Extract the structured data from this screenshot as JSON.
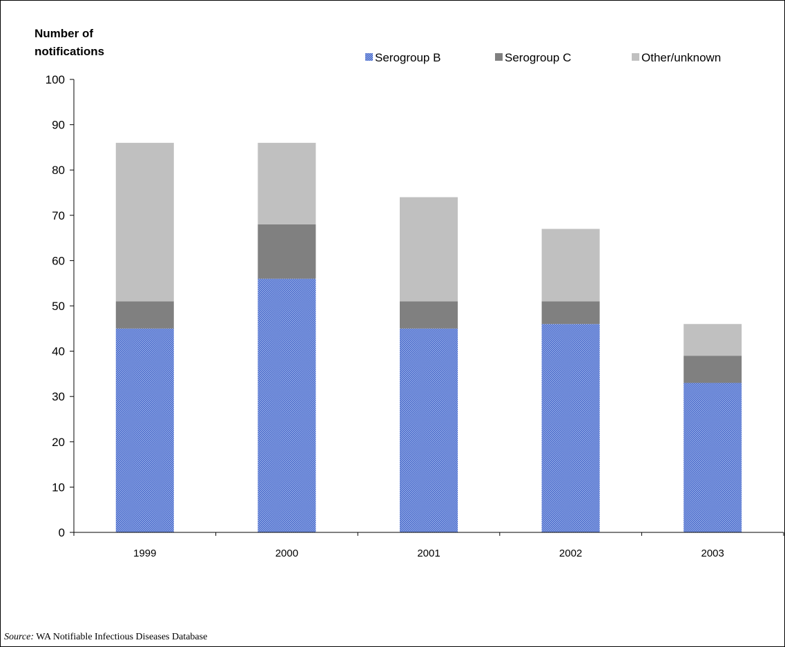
{
  "chart_data": {
    "type": "bar",
    "stacked": true,
    "ylabel_lines": [
      "Number of",
      "notifications"
    ],
    "categories": [
      "1999",
      "2000",
      "2001",
      "2002",
      "2003"
    ],
    "series": [
      {
        "name": "Serogroup B",
        "values": [
          45,
          56,
          45,
          46,
          33
        ],
        "color": "#5a7fd6",
        "pattern": "dotted"
      },
      {
        "name": "Serogroup C",
        "values": [
          6,
          12,
          6,
          5,
          6
        ],
        "color": "#808080"
      },
      {
        "name": "Other/unknown",
        "values": [
          35,
          18,
          23,
          16,
          7
        ],
        "color": "#c0c0c0"
      }
    ],
    "ylim": [
      0,
      100
    ],
    "yticks": [
      0,
      10,
      20,
      30,
      40,
      50,
      60,
      70,
      80,
      90,
      100
    ],
    "grid": false,
    "legend_position": "top-right"
  },
  "source": {
    "prefix": "Source:",
    "text": " WA Notifiable Infectious Diseases Database"
  }
}
